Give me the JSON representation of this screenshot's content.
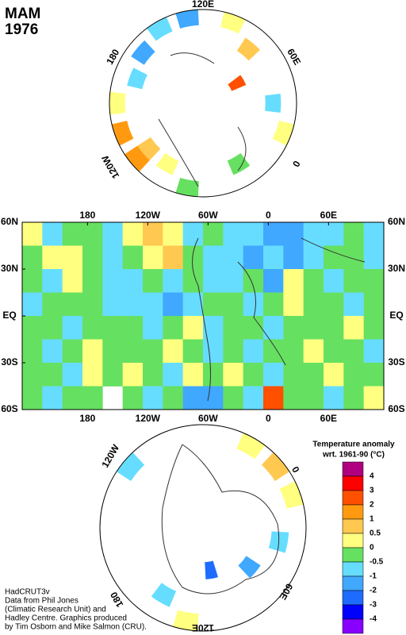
{
  "title": [
    "MAM",
    "1976"
  ],
  "map": {
    "xlim": [
      115,
      475
    ],
    "ylim": [
      -60,
      60
    ],
    "xticks": [
      {
        "value": 180,
        "label": "180"
      },
      {
        "value": 240,
        "label": "120W"
      },
      {
        "value": 300,
        "label": "60W"
      },
      {
        "value": 360,
        "label": "0"
      },
      {
        "value": 420,
        "label": "60E"
      }
    ],
    "yticks": [
      {
        "value": 60,
        "label": "60N"
      },
      {
        "value": 30,
        "label": "30N"
      },
      {
        "value": 0,
        "label": "EQ"
      },
      {
        "value": -30,
        "label": "30S"
      },
      {
        "value": -60,
        "label": "60S"
      }
    ],
    "cells": [
      [
        0.2,
        -0.7,
        -0.2,
        -0.2,
        -0.7,
        0.2,
        0.7,
        0.2,
        -0.7,
        -0.2,
        -0.7,
        -0.7,
        -1.5,
        -1.5,
        -0.7,
        -0.7,
        -0.2,
        -0.7
      ],
      [
        -0.2,
        0.2,
        0.2,
        -0.2,
        -0.7,
        -0.2,
        0.2,
        0.7,
        -0.2,
        -0.7,
        -0.7,
        -1.5,
        -0.7,
        -1.5,
        -0.7,
        -0.2,
        -0.2,
        -0.7
      ],
      [
        -0.2,
        -0.7,
        0.2,
        -0.2,
        -0.7,
        -0.7,
        -0.2,
        -0.7,
        -0.2,
        -0.7,
        -0.7,
        -0.2,
        -1.5,
        0.2,
        -0.2,
        -0.7,
        -0.2,
        -0.2
      ],
      [
        -0.7,
        -0.2,
        -0.2,
        -0.2,
        -0.7,
        -0.7,
        -0.7,
        -1.5,
        -0.7,
        -0.2,
        -0.2,
        -0.7,
        -0.2,
        0.2,
        -0.2,
        -0.2,
        -0.7,
        -0.2
      ],
      [
        -0.2,
        -0.2,
        -0.7,
        -0.2,
        -0.2,
        -0.2,
        -0.7,
        -0.2,
        0.2,
        -0.7,
        -0.2,
        -0.2,
        -0.7,
        -0.2,
        -0.2,
        -0.2,
        0.2,
        -0.2
      ],
      [
        -0.2,
        -0.7,
        -0.2,
        0.2,
        -0.2,
        -0.2,
        -0.2,
        0.2,
        -0.2,
        -0.7,
        -0.2,
        -0.7,
        -0.2,
        -0.2,
        0.2,
        -0.2,
        -0.2,
        -0.7
      ],
      [
        -0.2,
        -0.2,
        -0.7,
        0.2,
        -0.2,
        0.2,
        -0.2,
        -0.7,
        0.2,
        -0.2,
        0.2,
        -0.2,
        -0.7,
        -0.2,
        -0.2,
        0.2,
        -0.2,
        -0.2
      ],
      [
        -0.2,
        -0.7,
        -0.2,
        -0.2,
        null,
        -0.2,
        -0.7,
        -0.2,
        -1.5,
        -1.5,
        -0.2,
        -0.7,
        2.5,
        -0.2,
        -0.2,
        -0.7,
        -0.2,
        0.2
      ]
    ]
  },
  "north": {
    "labels": [
      "120E",
      "60E",
      "0",
      "120W",
      "180"
    ],
    "cells": [
      {
        "lon": 130,
        "lat": 35,
        "value": -1.5
      },
      {
        "lon": 150,
        "lat": 35,
        "value": -0.7
      },
      {
        "lon": 170,
        "lat": 40,
        "value": -1.5
      },
      {
        "lon": -170,
        "lat": 45,
        "value": -0.7
      },
      {
        "lon": -150,
        "lat": 35,
        "value": 0.2
      },
      {
        "lon": -130,
        "lat": 35,
        "value": 1.5
      },
      {
        "lon": -110,
        "lat": 35,
        "value": 1.5
      },
      {
        "lon": -110,
        "lat": 45,
        "value": 0.7
      },
      {
        "lon": 60,
        "lat": 65,
        "value": 2.5
      },
      {
        "lon": 80,
        "lat": 45,
        "value": 0.7
      },
      {
        "lon": 100,
        "lat": 35,
        "value": 0.2
      },
      {
        "lon": 30,
        "lat": 45,
        "value": -0.7
      },
      {
        "lon": 10,
        "lat": 35,
        "value": 0.2
      },
      {
        "lon": -30,
        "lat": 45,
        "value": -0.2
      },
      {
        "lon": -70,
        "lat": 35,
        "value": -0.2
      },
      {
        "lon": -90,
        "lat": 45,
        "value": 0.2
      }
    ]
  },
  "south": {
    "labels": [
      "120W",
      "0",
      "60E",
      "120E",
      "180"
    ],
    "cells": [
      {
        "lon": -10,
        "lat": -35,
        "value": 0.7
      },
      {
        "lon": -30,
        "lat": -35,
        "value": 0.2
      },
      {
        "lon": 10,
        "lat": -35,
        "value": 0.2
      },
      {
        "lon": -110,
        "lat": -35,
        "value": -0.7
      },
      {
        "lon": 70,
        "lat": -55,
        "value": -1.5
      },
      {
        "lon": 110,
        "lat": -65,
        "value": -2.5
      },
      {
        "lon": 150,
        "lat": -45,
        "value": -0.7
      },
      {
        "lon": 130,
        "lat": -35,
        "value": 0.2
      },
      {
        "lon": 40,
        "lat": -45,
        "value": -0.7
      }
    ]
  },
  "legend": {
    "title": "Temperature anomaly",
    "subtitle": "wrt. 1961-90  (°C)",
    "labels": [
      4,
      3,
      2,
      1,
      0.5,
      0,
      -0.5,
      -1,
      -2,
      -3,
      -4
    ],
    "colors": [
      "#b0007f",
      "#ff0000",
      "#ff5000",
      "#ff9a10",
      "#ffc850",
      "#ffff80",
      "#66e060",
      "#66ddff",
      "#40a8ff",
      "#1e6cff",
      "#0000ff",
      "#8800ff"
    ]
  },
  "credits": [
    "HadCRUT3v",
    "Data from Phil Jones",
    "(Climatic Research Unit) and",
    "Hadley Centre.  Graphics produced",
    "by Tim Osborn and Mike Salmon (CRU)."
  ]
}
